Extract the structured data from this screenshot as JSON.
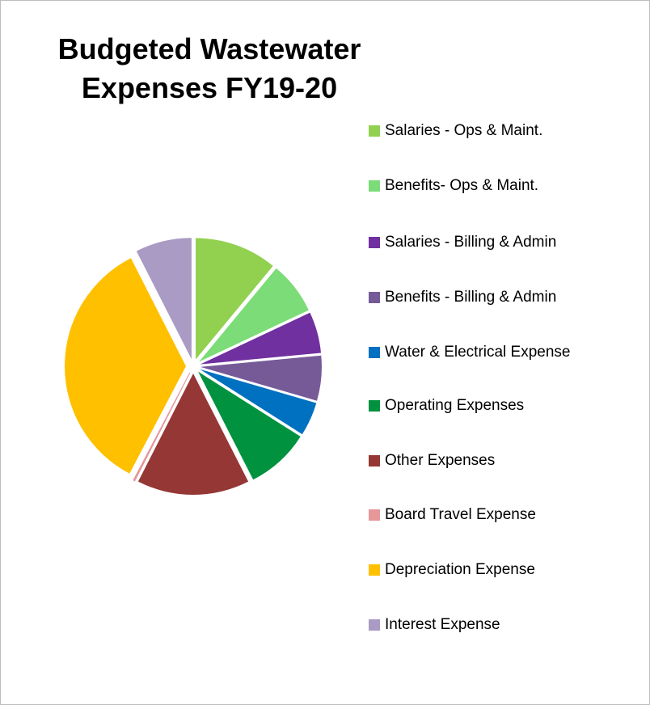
{
  "chart_data": {
    "type": "pie",
    "title": "Budgeted Wastewater Expenses FY19-20",
    "categories": [
      "Salaries - Ops & Maint.",
      "Benefits- Ops & Maint.",
      "Salaries - Billing & Admin",
      "Benefits - Billing & Admin",
      "Water & Electrical Expense",
      "Operating Expenses",
      "Other Expenses",
      "Board Travel Expense",
      "Depreciation Expense",
      "Interest Expense"
    ],
    "values": [
      11,
      7,
      5.5,
      6,
      4.5,
      8.5,
      15,
      0.2,
      34.8,
      7.5
    ],
    "colors": [
      "#92d050",
      "#7bdc78",
      "#7030a0",
      "#765a98",
      "#0070c0",
      "#00923f",
      "#953735",
      "#e6979a",
      "#ffc000",
      "#a99bc4"
    ],
    "legend": "right"
  }
}
